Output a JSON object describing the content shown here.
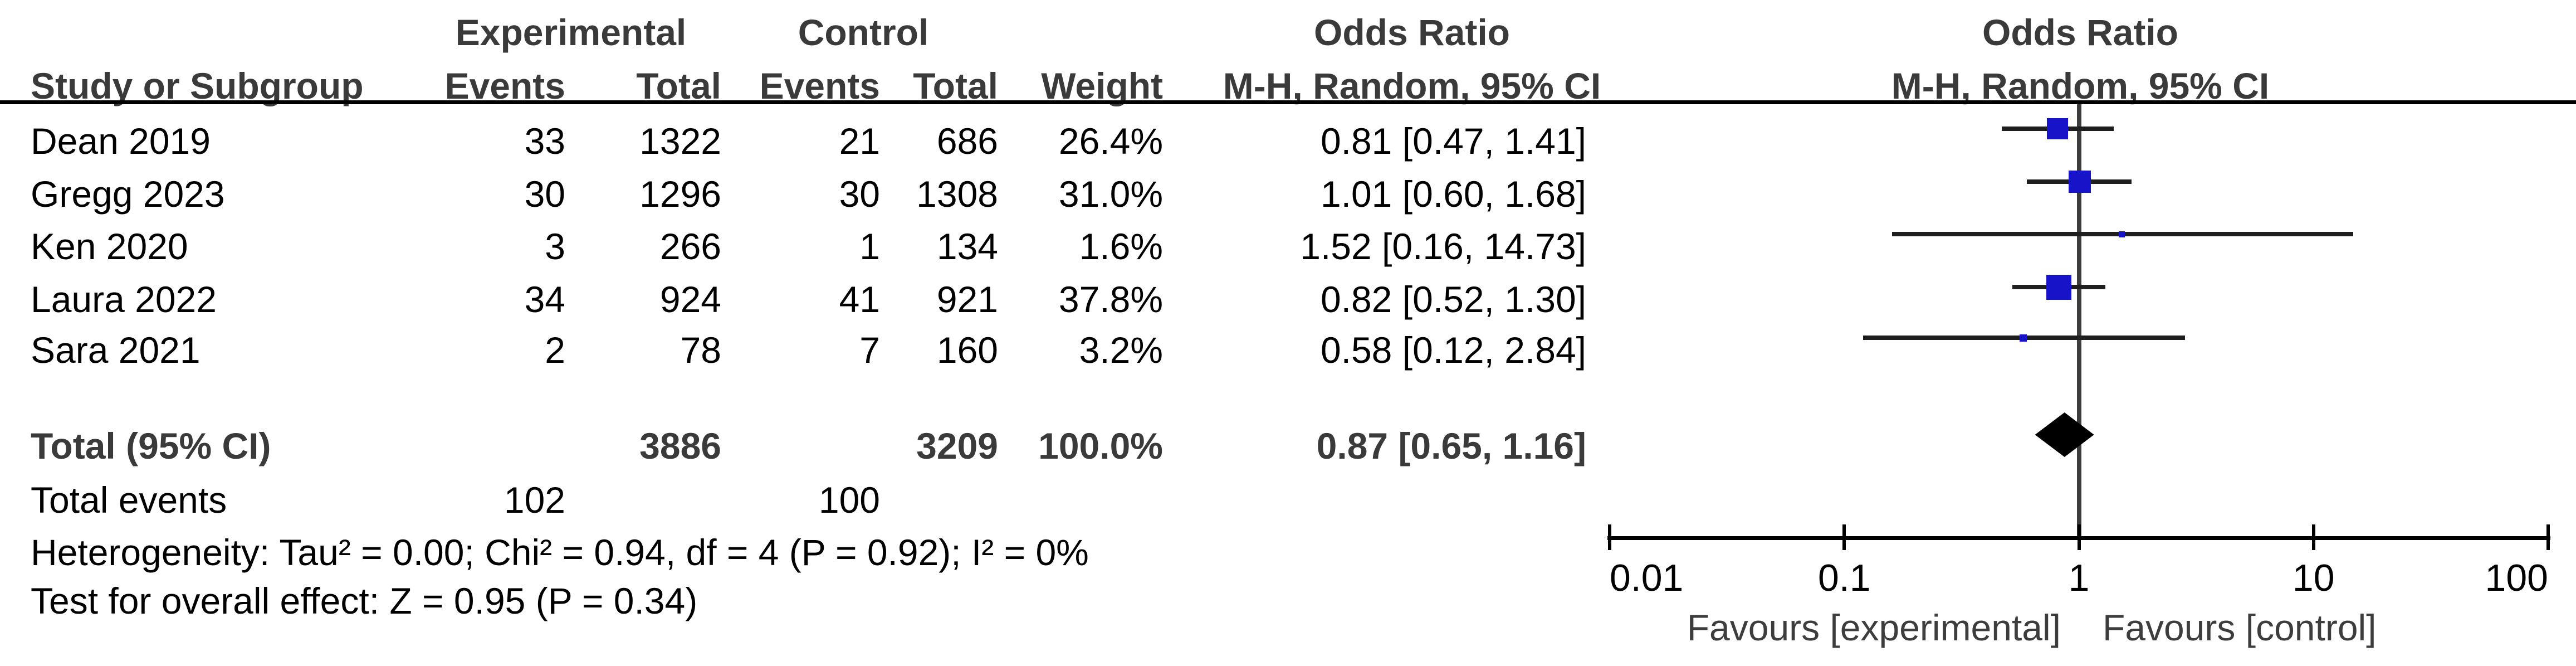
{
  "table": {
    "header": {
      "group_experimental": "Experimental",
      "group_control": "Control",
      "or_text_title": "Odds Ratio",
      "or_plot_title": "Odds Ratio",
      "col_study": "Study or Subgroup",
      "col_exp_events": "Events",
      "col_exp_total": "Total",
      "col_ctrl_events": "Events",
      "col_ctrl_total": "Total",
      "col_weight": "Weight",
      "or_text_subtitle": "M-H, Random, 95% CI",
      "or_plot_subtitle": "M-H, Random, 95% CI"
    },
    "studies": [
      {
        "name": "Dean 2019",
        "exp_events": "33",
        "exp_total": "1322",
        "ctrl_events": "21",
        "ctrl_total": "686",
        "weight": "26.4%",
        "or_ci": "0.81 [0.47, 1.41]",
        "or": 0.81,
        "lo": 0.47,
        "hi": 1.41
      },
      {
        "name": "Gregg 2023",
        "exp_events": "30",
        "exp_total": "1296",
        "ctrl_events": "30",
        "ctrl_total": "1308",
        "weight": "31.0%",
        "or_ci": "1.01 [0.60, 1.68]",
        "or": 1.01,
        "lo": 0.6,
        "hi": 1.68
      },
      {
        "name": "Ken 2020",
        "exp_events": "3",
        "exp_total": "266",
        "ctrl_events": "1",
        "ctrl_total": "134",
        "weight": "1.6%",
        "or_ci": "1.52 [0.16, 14.73]",
        "or": 1.52,
        "lo": 0.16,
        "hi": 14.73
      },
      {
        "name": "Laura 2022",
        "exp_events": "34",
        "exp_total": "924",
        "ctrl_events": "41",
        "ctrl_total": "921",
        "weight": "37.8%",
        "or_ci": "0.82 [0.52, 1.30]",
        "or": 0.82,
        "lo": 0.52,
        "hi": 1.3
      },
      {
        "name": "Sara 2021",
        "exp_events": "2",
        "exp_total": "78",
        "ctrl_events": "7",
        "ctrl_total": "160",
        "weight": "3.2%",
        "or_ci": "0.58 [0.12, 2.84]",
        "or": 0.58,
        "lo": 0.12,
        "hi": 2.84
      }
    ],
    "total": {
      "label": "Total (95% CI)",
      "exp_total": "3886",
      "ctrl_total": "3209",
      "weight": "100.0%",
      "or_ci": "0.87 [0.65, 1.16]",
      "or": 0.87,
      "lo": 0.65,
      "hi": 1.16
    },
    "total_events": {
      "label": "Total events",
      "exp": "102",
      "ctrl": "100"
    },
    "heterogeneity": "Heterogeneity: Tau² = 0.00; Chi² = 0.94, df = 4 (P = 0.92); I² = 0%",
    "overall_effect": "Test for overall effect: Z = 0.95 (P = 0.34)"
  },
  "axis": {
    "ticks": [
      "0.01",
      "0.1",
      "1",
      "10",
      "100"
    ],
    "favours_left": "Favours [experimental]",
    "favours_right": "Favours [control]"
  },
  "colors": {
    "square_blue": "#1713C9",
    "diamond_black": "#000000",
    "center_line_gray": "#3d3d3d",
    "ci_line_black": "#1f1f1f",
    "bold_text_gray": "#3a3a3a",
    "text_black": "#000000"
  },
  "chart_data": {
    "type": "scatter",
    "subtype": "forest-plot",
    "effect_measure": "Odds Ratio",
    "method": "M-H, Random, 95% CI",
    "x_scale": "log",
    "xlim": [
      0.01,
      100
    ],
    "x_ticks": [
      0.01,
      0.1,
      1,
      10,
      100
    ],
    "studies": [
      {
        "name": "Dean 2019",
        "exp_events": 33,
        "exp_total": 1322,
        "ctrl_events": 21,
        "ctrl_total": 686,
        "weight_pct": 26.4,
        "or": 0.81,
        "ci": [
          0.47,
          1.41
        ]
      },
      {
        "name": "Gregg 2023",
        "exp_events": 30,
        "exp_total": 1296,
        "ctrl_events": 30,
        "ctrl_total": 1308,
        "weight_pct": 31.0,
        "or": 1.01,
        "ci": [
          0.6,
          1.68
        ]
      },
      {
        "name": "Ken 2020",
        "exp_events": 3,
        "exp_total": 266,
        "ctrl_events": 1,
        "ctrl_total": 134,
        "weight_pct": 1.6,
        "or": 1.52,
        "ci": [
          0.16,
          14.73
        ]
      },
      {
        "name": "Laura 2022",
        "exp_events": 34,
        "exp_total": 924,
        "ctrl_events": 41,
        "ctrl_total": 921,
        "weight_pct": 37.8,
        "or": 0.82,
        "ci": [
          0.52,
          1.3
        ]
      },
      {
        "name": "Sara 2021",
        "exp_events": 2,
        "exp_total": 78,
        "ctrl_events": 7,
        "ctrl_total": 160,
        "weight_pct": 3.2,
        "or": 0.58,
        "ci": [
          0.12,
          2.84
        ]
      }
    ],
    "total": {
      "label": "Total (95% CI)",
      "exp_total": 3886,
      "ctrl_total": 3209,
      "weight_pct": 100.0,
      "or": 0.87,
      "ci": [
        0.65,
        1.16
      ]
    },
    "total_events": {
      "experimental": 102,
      "control": 100
    },
    "heterogeneity": "Tau² = 0.00; Chi² = 0.94, df = 4 (P = 0.92); I² = 0%",
    "overall_effect": "Z = 0.95 (P = 0.34)",
    "favours": [
      "Favours [experimental]",
      "Favours [control]"
    ]
  }
}
